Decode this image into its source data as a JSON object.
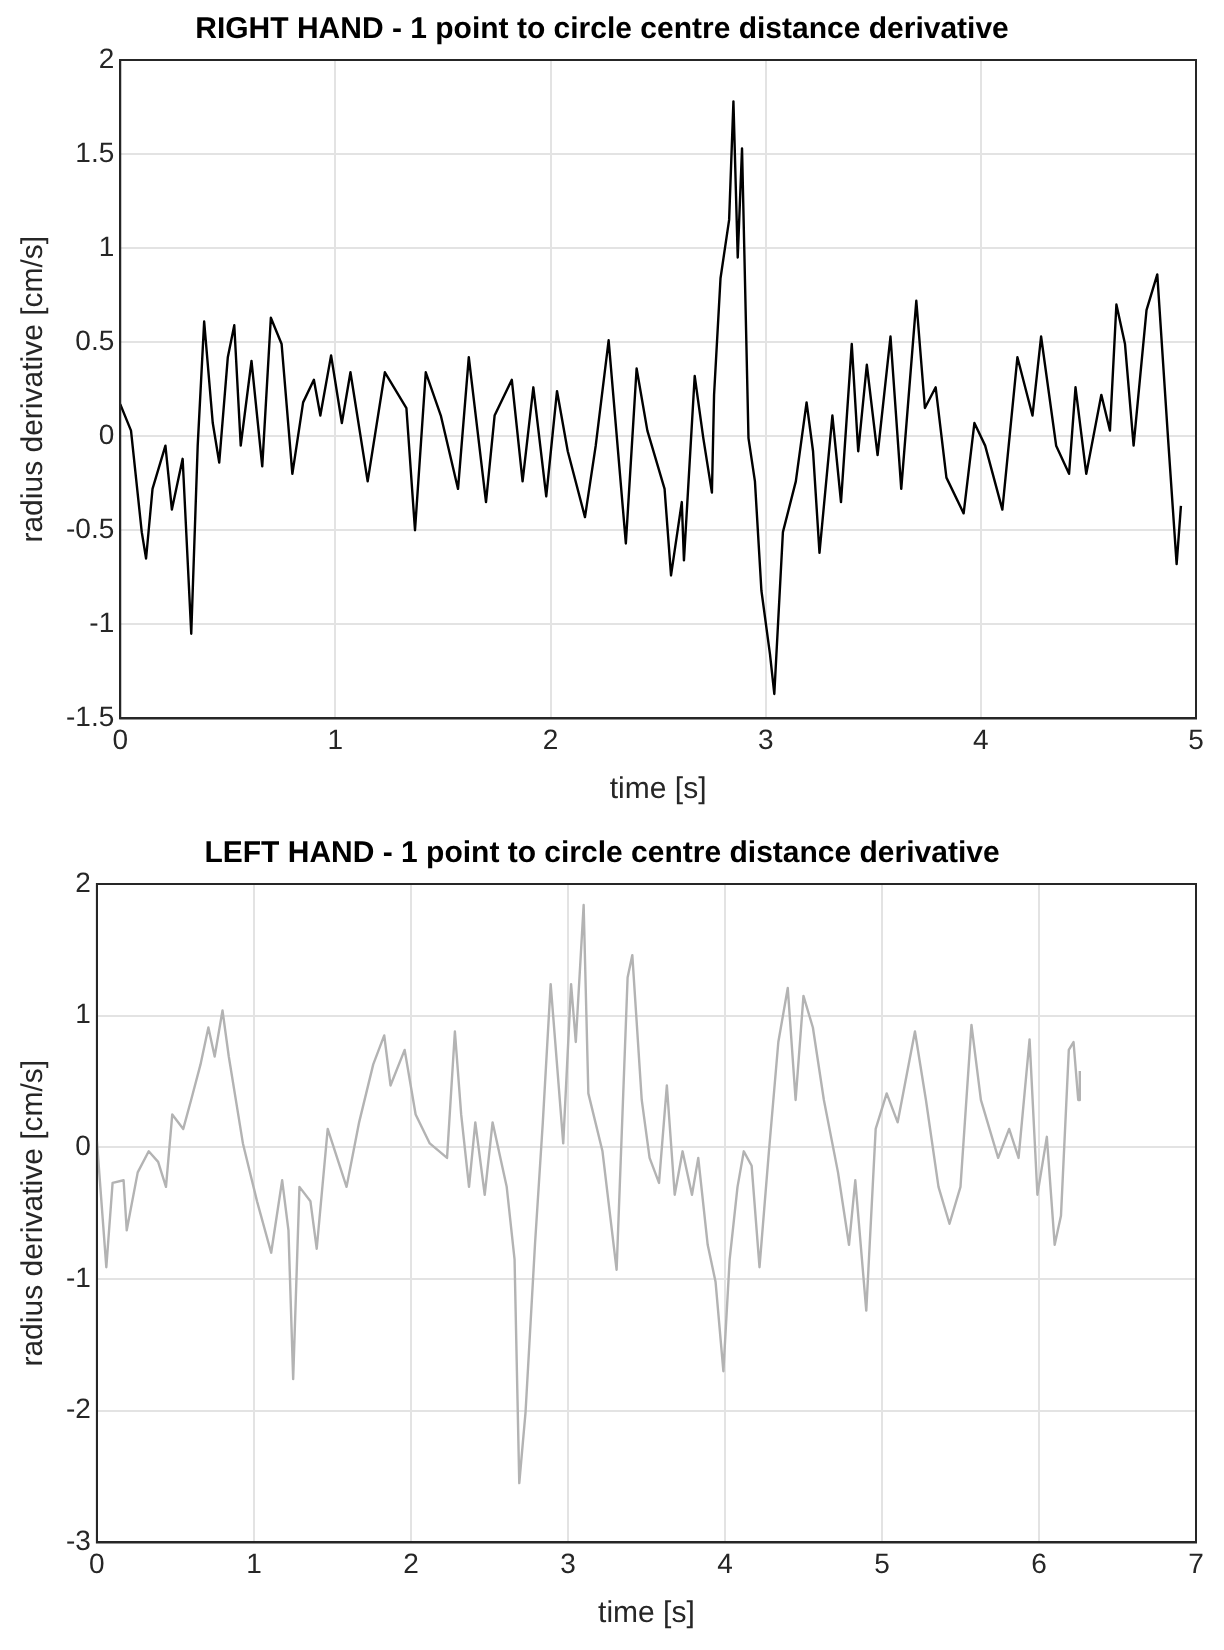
{
  "chart_data": [
    {
      "type": "line",
      "title": "RIGHT HAND - 1 point to circle centre distance derivative",
      "xlabel": "time [s]",
      "ylabel": "radius derivative [cm/s]",
      "xlim": [
        0,
        5
      ],
      "xticks": [
        0,
        1,
        2,
        3,
        4,
        5
      ],
      "ylim": [
        -1.5,
        2
      ],
      "yticks": [
        -1.5,
        -1,
        -0.5,
        0,
        0.5,
        1,
        1.5,
        2
      ],
      "grid": true,
      "marker": "none",
      "line_style": "solid",
      "x": [
        0,
        0.05,
        0.1,
        0.12,
        0.15,
        0.21,
        0.24,
        0.29,
        0.33,
        0.36,
        0.39,
        0.43,
        0.46,
        0.5,
        0.53,
        0.56,
        0.61,
        0.66,
        0.7,
        0.75,
        0.8,
        0.85,
        0.9,
        0.93,
        0.98,
        1.03,
        1.07,
        1.15,
        1.23,
        1.33,
        1.37,
        1.42,
        1.49,
        1.57,
        1.62,
        1.7,
        1.74,
        1.82,
        1.87,
        1.92,
        1.98,
        2.03,
        2.08,
        2.16,
        2.21,
        2.27,
        2.35,
        2.4,
        2.45,
        2.53,
        2.56,
        2.61,
        2.62,
        2.67,
        2.71,
        2.75,
        2.76,
        2.79,
        2.83,
        2.85,
        2.87,
        2.89,
        2.92,
        2.95,
        2.98,
        3.02,
        3.04,
        3.08,
        3.14,
        3.19,
        3.22,
        3.25,
        3.31,
        3.35,
        3.4,
        3.43,
        3.47,
        3.52,
        3.58,
        3.63,
        3.7,
        3.74,
        3.79,
        3.84,
        3.92,
        3.97,
        4.02,
        4.1,
        4.17,
        4.24,
        4.28,
        4.35,
        4.41,
        4.44,
        4.49,
        4.56,
        4.6,
        4.63,
        4.67,
        4.71,
        4.77,
        4.82,
        4.87,
        4.91,
        4.93
      ],
      "series": [
        {
          "color": "#000000",
          "values": [
            0.17,
            0.03,
            -0.51,
            -0.65,
            -0.28,
            -0.05,
            -0.39,
            -0.12,
            -1.05,
            -0.05,
            0.61,
            0.07,
            -0.14,
            0.42,
            0.59,
            -0.05,
            0.4,
            -0.16,
            0.63,
            0.49,
            -0.2,
            0.18,
            0.3,
            0.11,
            0.43,
            0.07,
            0.34,
            -0.24,
            0.34,
            0.15,
            -0.5,
            0.34,
            0.11,
            -0.28,
            0.42,
            -0.35,
            0.11,
            0.3,
            -0.24,
            0.26,
            -0.32,
            0.24,
            -0.08,
            -0.43,
            -0.05,
            0.51,
            -0.57,
            0.36,
            0.03,
            -0.28,
            -0.74,
            -0.35,
            -0.66,
            0.32,
            -0.01,
            -0.3,
            0.22,
            0.84,
            1.15,
            1.78,
            0.95,
            1.53,
            -0.01,
            -0.24,
            -0.82,
            -1.16,
            -1.37,
            -0.51,
            -0.24,
            0.18,
            -0.08,
            -0.62,
            0.11,
            -0.35,
            0.49,
            -0.08,
            0.38,
            -0.1,
            0.53,
            -0.28,
            0.72,
            0.15,
            0.26,
            -0.22,
            -0.41,
            0.07,
            -0.05,
            -0.39,
            0.42,
            0.11,
            0.53,
            -0.05,
            -0.2,
            0.26,
            -0.2,
            0.22,
            0.03,
            0.7,
            0.49,
            -0.05,
            0.67,
            0.86,
            -0.01,
            -0.68,
            -0.37
          ]
        }
      ]
    },
    {
      "type": "line",
      "title": "LEFT HAND - 1 point to circle centre distance derivative",
      "xlabel": "time [s]",
      "ylabel": "radius derivative [cm/s]",
      "xlim": [
        0,
        7
      ],
      "xticks": [
        0,
        1,
        2,
        3,
        4,
        5,
        6,
        7
      ],
      "ylim": [
        -3,
        2
      ],
      "yticks": [
        -3,
        -2,
        -1,
        0,
        1,
        2
      ],
      "grid": true,
      "marker": "none",
      "line_style": "solid",
      "x": [
        0,
        0.06,
        0.1,
        0.17,
        0.19,
        0.26,
        0.33,
        0.39,
        0.44,
        0.48,
        0.55,
        0.6,
        0.66,
        0.71,
        0.75,
        0.8,
        0.84,
        0.93,
        1.02,
        1.11,
        1.18,
        1.22,
        1.25,
        1.29,
        1.36,
        1.4,
        1.47,
        1.59,
        1.67,
        1.76,
        1.83,
        1.87,
        1.96,
        2.03,
        2.12,
        2.23,
        2.28,
        2.32,
        2.37,
        2.41,
        2.47,
        2.52,
        2.61,
        2.66,
        2.69,
        2.73,
        2.79,
        2.84,
        2.89,
        2.97,
        3.02,
        3.05,
        3.1,
        3.13,
        3.22,
        3.31,
        3.38,
        3.41,
        3.47,
        3.52,
        3.58,
        3.63,
        3.68,
        3.73,
        3.79,
        3.83,
        3.89,
        3.94,
        3.99,
        4.03,
        4.08,
        4.12,
        4.17,
        4.22,
        4.28,
        4.34,
        4.4,
        4.45,
        4.5,
        4.56,
        4.63,
        4.72,
        4.79,
        4.83,
        4.9,
        4.96,
        5.03,
        5.1,
        5.21,
        5.28,
        5.36,
        5.43,
        5.5,
        5.57,
        5.63,
        5.7,
        5.74,
        5.81,
        5.87,
        5.94,
        5.99,
        6.05,
        6.1,
        6.14,
        6.19,
        6.22,
        6.25,
        6.26
      ],
      "series": [
        {
          "color": "#b3b3b3",
          "values": [
            0.05,
            -0.91,
            -0.27,
            -0.25,
            -0.63,
            -0.19,
            -0.03,
            -0.11,
            -0.3,
            0.25,
            0.14,
            0.36,
            0.63,
            0.91,
            0.69,
            1.04,
            0.69,
            0.03,
            -0.41,
            -0.8,
            -0.25,
            -0.63,
            -1.76,
            -0.3,
            -0.41,
            -0.77,
            0.14,
            -0.3,
            0.19,
            0.63,
            0.85,
            0.47,
            0.74,
            0.25,
            0.03,
            -0.08,
            0.88,
            0.25,
            -0.3,
            0.19,
            -0.36,
            0.19,
            -0.3,
            -0.85,
            -2.55,
            -2.01,
            -0.74,
            0.19,
            1.24,
            0.03,
            1.24,
            0.8,
            1.84,
            0.41,
            -0.03,
            -0.93,
            1.29,
            1.46,
            0.36,
            -0.08,
            -0.27,
            0.47,
            -0.36,
            -0.03,
            -0.36,
            -0.08,
            -0.74,
            -1.02,
            -1.7,
            -0.85,
            -0.3,
            -0.03,
            -0.14,
            -0.91,
            -0.03,
            0.8,
            1.21,
            0.36,
            1.15,
            0.91,
            0.36,
            -0.19,
            -0.74,
            -0.25,
            -1.24,
            0.14,
            0.41,
            0.19,
            0.88,
            0.36,
            -0.3,
            -0.58,
            -0.3,
            0.93,
            0.36,
            0.08,
            -0.08,
            0.14,
            -0.08,
            0.82,
            -0.36,
            0.08,
            -0.74,
            -0.52,
            0.74,
            0.8,
            0.36,
            0.58
          ]
        }
      ]
    }
  ]
}
